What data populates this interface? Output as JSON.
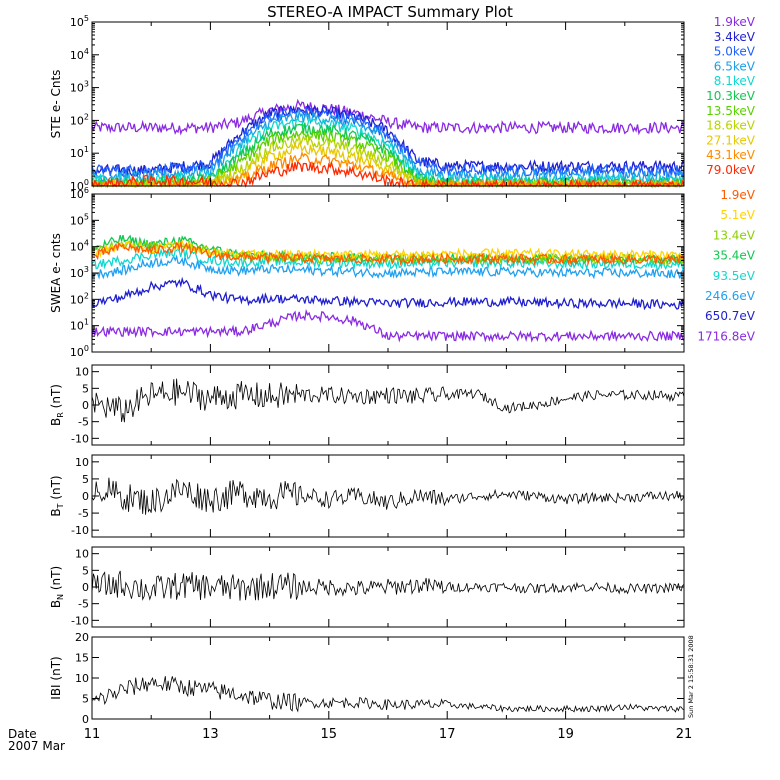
{
  "title": "STEREO-A IMPACT Summary Plot",
  "date_label": "Date",
  "date_value": "2007 Mar",
  "timestamp": "Sun Mar  2 15:58:31 2008",
  "x_tick_labels": [
    "11",
    "13",
    "15",
    "17",
    "19",
    "21"
  ],
  "chart_data": [
    {
      "type": "line",
      "panel": "ste",
      "ylabel": "STE e- Cnts",
      "yscale": "log",
      "ylim": [
        1,
        100000
      ],
      "x": [
        11,
        12,
        13,
        13.5,
        14,
        14.5,
        15,
        15.5,
        16,
        16.5,
        17,
        18,
        19,
        20,
        21
      ],
      "series": [
        {
          "name": "1.9keV",
          "color": "#8a2be2",
          "values": [
            60,
            60,
            60,
            90,
            200,
            280,
            230,
            160,
            90,
            60,
            60,
            60,
            60,
            60,
            60
          ]
        },
        {
          "name": "3.4keV",
          "color": "#1f1fd0",
          "values": [
            3,
            3,
            5,
            40,
            160,
            220,
            180,
            120,
            50,
            6,
            4,
            4,
            4,
            4,
            4
          ]
        },
        {
          "name": "5.0keV",
          "color": "#1f5fff",
          "values": [
            3,
            3,
            4,
            30,
            130,
            180,
            150,
            100,
            40,
            5,
            3,
            3,
            3,
            3,
            3
          ]
        },
        {
          "name": "6.5keV",
          "color": "#1a9fe8",
          "values": [
            2,
            2,
            3,
            20,
            90,
            130,
            110,
            75,
            28,
            3,
            2,
            2,
            2,
            2,
            2
          ]
        },
        {
          "name": "8.1keV",
          "color": "#10d8d0",
          "values": [
            1.5,
            1.5,
            2,
            12,
            60,
            90,
            75,
            50,
            18,
            2,
            1.5,
            1.5,
            1.5,
            1.5,
            1.5
          ]
        },
        {
          "name": "10.3keV",
          "color": "#10c850",
          "values": [
            1.2,
            1.2,
            1.6,
            8,
            40,
            60,
            50,
            32,
            12,
            1.6,
            1.2,
            1.2,
            1.2,
            1.2,
            1.2
          ]
        },
        {
          "name": "13.5keV",
          "color": "#5ad000",
          "values": [
            1,
            1,
            1.4,
            5,
            25,
            40,
            33,
            20,
            8,
            1.3,
            1,
            1,
            1,
            1,
            1
          ]
        },
        {
          "name": "18.6keV",
          "color": "#b8d400",
          "values": [
            1,
            1,
            1.2,
            3,
            14,
            24,
            20,
            12,
            5,
            1.2,
            1,
            1,
            1,
            1,
            1
          ]
        },
        {
          "name": "27.1keV",
          "color": "#e8c800",
          "values": [
            1,
            1,
            1.1,
            2,
            8,
            14,
            11,
            7,
            3,
            1.1,
            1,
            1,
            1,
            1,
            1
          ]
        },
        {
          "name": "43.1keV",
          "color": "#ff8a00",
          "values": [
            1,
            1,
            1,
            1.5,
            4,
            7,
            6,
            4,
            2,
            1,
            1,
            1,
            1,
            1,
            1
          ]
        },
        {
          "name": "79.0keV",
          "color": "#ff2a00",
          "values": [
            1,
            1.5,
            1.3,
            1.2,
            2.5,
            4,
            3.5,
            2.5,
            1.4,
            1,
            1,
            1,
            1,
            1,
            1
          ]
        }
      ]
    },
    {
      "type": "line",
      "panel": "swea",
      "ylabel": "SWEA e- cnts",
      "yscale": "log",
      "ylim": [
        1,
        1000000
      ],
      "x": [
        11,
        11.5,
        12,
        12.5,
        13,
        13.5,
        14,
        14.5,
        15,
        15.5,
        16,
        17,
        18,
        19,
        20,
        21
      ],
      "series": [
        {
          "name": "1716.8eV",
          "color": "#8a2be2",
          "values": [
            6,
            6,
            6,
            6,
            6,
            6,
            12,
            25,
            22,
            14,
            4,
            4,
            4,
            4,
            4,
            4
          ]
        },
        {
          "name": "650.7eV",
          "color": "#1f1fd0",
          "values": [
            70,
            120,
            300,
            450,
            150,
            90,
            110,
            100,
            90,
            80,
            70,
            80,
            80,
            70,
            70,
            60
          ]
        },
        {
          "name": "246.6eV",
          "color": "#20a0f0",
          "values": [
            900,
            1200,
            2500,
            3000,
            1500,
            1200,
            1400,
            1300,
            1200,
            1100,
            1000,
            1100,
            1100,
            1000,
            1000,
            900
          ]
        },
        {
          "name": "93.5eV",
          "color": "#10d8d0",
          "values": [
            2000,
            3000,
            5000,
            6000,
            3000,
            2500,
            2800,
            2600,
            2500,
            2400,
            2200,
            2400,
            2400,
            2200,
            2200,
            2000
          ]
        },
        {
          "name": "35.4eV",
          "color": "#10c850",
          "values": [
            8000,
            20000,
            12000,
            18000,
            8000,
            5000,
            4500,
            4200,
            4000,
            3800,
            3500,
            3800,
            3800,
            3500,
            3500,
            3200
          ]
        },
        {
          "name": "13.4eV",
          "color": "#8ad000",
          "values": [
            6000,
            15000,
            10000,
            14000,
            7000,
            4500,
            4000,
            3800,
            3600,
            3500,
            3400,
            3600,
            3600,
            3400,
            3400,
            3200
          ]
        },
        {
          "name": "5.1eV",
          "color": "#ffd400",
          "values": [
            5000,
            12000,
            8000,
            12000,
            6000,
            5000,
            5000,
            5000,
            5000,
            5000,
            5000,
            5200,
            5500,
            5200,
            5000,
            4800
          ]
        },
        {
          "name": "1.9eV",
          "color": "#ff5a00",
          "values": [
            4000,
            10000,
            7000,
            10000,
            5000,
            4000,
            3800,
            3600,
            3500,
            3400,
            3300,
            3500,
            3500,
            3300,
            3300,
            3100
          ]
        }
      ]
    },
    {
      "type": "line",
      "panel": "br",
      "ylabel_main": "B",
      "ylabel_sub": "R",
      "ylabel_unit": "(nT)",
      "ylim": [
        -12,
        12
      ],
      "yticks": [
        "-10",
        "-5",
        "0",
        "5",
        "10"
      ],
      "x": [
        11,
        11.5,
        12,
        12.5,
        13,
        13.5,
        14,
        14.5,
        15,
        15.5,
        16,
        16.5,
        17,
        17.5,
        18,
        18.5,
        19,
        19.5,
        20,
        20.5,
        21
      ],
      "series": [
        {
          "name": "",
          "color": "#000000",
          "values": [
            1,
            -2,
            3,
            4,
            2,
            3,
            2.5,
            3,
            3,
            2.5,
            3,
            2.5,
            3,
            3.5,
            -1,
            0,
            2,
            3,
            3,
            3,
            2.5
          ]
        }
      ]
    },
    {
      "type": "line",
      "panel": "bt",
      "ylabel_main": "B",
      "ylabel_sub": "T",
      "ylabel_unit": "(nT)",
      "ylim": [
        -12,
        12
      ],
      "yticks": [
        "-10",
        "-5",
        "0",
        "5",
        "10"
      ],
      "x": [
        11,
        11.5,
        12,
        12.5,
        13,
        13.5,
        14,
        14.5,
        15,
        15.5,
        16,
        16.5,
        17,
        17.5,
        18,
        18.5,
        19,
        19.5,
        20,
        20.5,
        21
      ],
      "series": [
        {
          "name": "",
          "color": "#000000",
          "values": [
            3,
            0,
            -2,
            2,
            -1,
            1,
            0,
            0.5,
            -1,
            0,
            -2,
            0,
            -1,
            0,
            0.5,
            0,
            -1,
            -0.5,
            -0.5,
            0,
            0
          ]
        }
      ]
    },
    {
      "type": "line",
      "panel": "bn",
      "ylabel_main": "B",
      "ylabel_sub": "N",
      "ylabel_unit": "(nT)",
      "ylim": [
        -12,
        12
      ],
      "yticks": [
        "-10",
        "-5",
        "0",
        "5",
        "10"
      ],
      "x": [
        11,
        11.5,
        12,
        12.5,
        13,
        13.5,
        14,
        14.5,
        15,
        15.5,
        16,
        16.5,
        17,
        17.5,
        18,
        18.5,
        19,
        19.5,
        20,
        20.5,
        21
      ],
      "series": [
        {
          "name": "",
          "color": "#000000",
          "values": [
            0,
            1,
            -1,
            0.5,
            0,
            -0.5,
            0.5,
            0,
            0,
            -0.5,
            0,
            0.5,
            0,
            0,
            0,
            -0.5,
            0,
            0,
            -0.5,
            -0.5,
            0
          ]
        }
      ]
    },
    {
      "type": "line",
      "panel": "bmag",
      "ylabel_main": "IBI",
      "ylabel_sub": "",
      "ylabel_unit": "(nT)",
      "ylim": [
        0,
        20
      ],
      "yticks": [
        "0",
        "5",
        "10",
        "15",
        "20"
      ],
      "x": [
        11,
        11.5,
        12,
        12.5,
        13,
        13.5,
        14,
        14.5,
        15,
        15.5,
        16,
        16.5,
        17,
        17.5,
        18,
        18.5,
        19,
        19.5,
        20,
        20.5,
        21
      ],
      "series": [
        {
          "name": "",
          "color": "#000000",
          "values": [
            4,
            7,
            9,
            8,
            7,
            6,
            4.5,
            4,
            4,
            4,
            3.5,
            3.5,
            3.5,
            3,
            2.5,
            2.5,
            2.5,
            2.5,
            3,
            2.5,
            2.5
          ]
        }
      ]
    }
  ]
}
